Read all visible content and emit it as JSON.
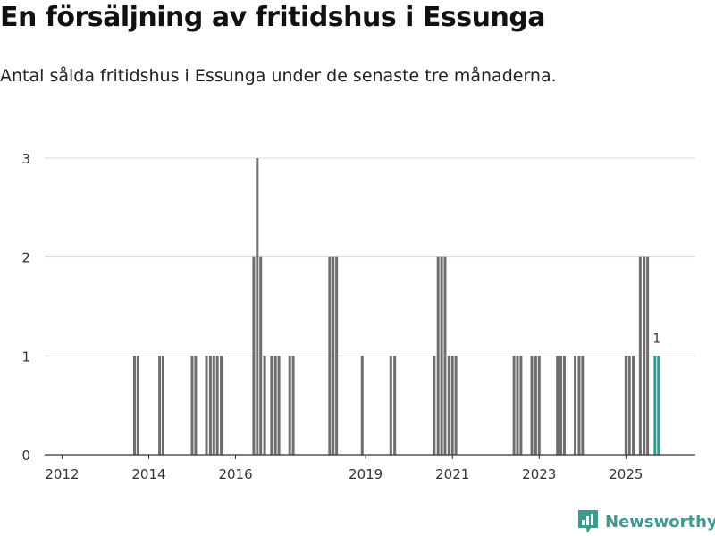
{
  "header": {
    "title": "En försäljning av fritidshus i Essunga",
    "subtitle": "Antal sålda fritidshus i Essunga under de senaste tre månaderna."
  },
  "brand": {
    "name": "Newsworthy"
  },
  "colors": {
    "bar": "#6e6e6e",
    "highlight": "#2a9d8f",
    "grid": "#d9d9d9",
    "axis": "#333333",
    "brand": "#3d9a8f"
  },
  "chart_data": {
    "type": "bar",
    "title": "En försäljning av fritidshus i Essunga",
    "xlabel": "",
    "ylabel": "",
    "ylim": [
      0,
      3
    ],
    "yticks": [
      0,
      1,
      2,
      3
    ],
    "xlim": [
      2011.6,
      2026.6
    ],
    "xticks": [
      "2012",
      "2014",
      "2016",
      "2019",
      "2021",
      "2023",
      "2025"
    ],
    "xtick_positions": [
      2012.0,
      2014.0,
      2016.0,
      2019.0,
      2021.0,
      2023.0,
      2025.0
    ],
    "bars": [
      {
        "x": 2013.67,
        "value": 1
      },
      {
        "x": 2013.75,
        "value": 1
      },
      {
        "x": 2014.25,
        "value": 1
      },
      {
        "x": 2014.33,
        "value": 1
      },
      {
        "x": 2015.0,
        "value": 1
      },
      {
        "x": 2015.08,
        "value": 1
      },
      {
        "x": 2015.33,
        "value": 1
      },
      {
        "x": 2015.42,
        "value": 1
      },
      {
        "x": 2015.5,
        "value": 1
      },
      {
        "x": 2015.58,
        "value": 1
      },
      {
        "x": 2015.67,
        "value": 1
      },
      {
        "x": 2016.42,
        "value": 2
      },
      {
        "x": 2016.5,
        "value": 3
      },
      {
        "x": 2016.58,
        "value": 2
      },
      {
        "x": 2016.67,
        "value": 1
      },
      {
        "x": 2016.83,
        "value": 1
      },
      {
        "x": 2016.92,
        "value": 1
      },
      {
        "x": 2017.0,
        "value": 1
      },
      {
        "x": 2017.25,
        "value": 1
      },
      {
        "x": 2017.33,
        "value": 1
      },
      {
        "x": 2018.17,
        "value": 2
      },
      {
        "x": 2018.25,
        "value": 2
      },
      {
        "x": 2018.33,
        "value": 2
      },
      {
        "x": 2018.92,
        "value": 1
      },
      {
        "x": 2019.58,
        "value": 1
      },
      {
        "x": 2019.67,
        "value": 1
      },
      {
        "x": 2020.58,
        "value": 1
      },
      {
        "x": 2020.67,
        "value": 2
      },
      {
        "x": 2020.75,
        "value": 2
      },
      {
        "x": 2020.83,
        "value": 2
      },
      {
        "x": 2020.92,
        "value": 1
      },
      {
        "x": 2021.0,
        "value": 1
      },
      {
        "x": 2021.08,
        "value": 1
      },
      {
        "x": 2022.42,
        "value": 1
      },
      {
        "x": 2022.5,
        "value": 1
      },
      {
        "x": 2022.58,
        "value": 1
      },
      {
        "x": 2022.83,
        "value": 1
      },
      {
        "x": 2022.92,
        "value": 1
      },
      {
        "x": 2023.0,
        "value": 1
      },
      {
        "x": 2023.42,
        "value": 1
      },
      {
        "x": 2023.5,
        "value": 1
      },
      {
        "x": 2023.58,
        "value": 1
      },
      {
        "x": 2023.83,
        "value": 1
      },
      {
        "x": 2023.92,
        "value": 1
      },
      {
        "x": 2024.0,
        "value": 1
      },
      {
        "x": 2025.0,
        "value": 1
      },
      {
        "x": 2025.08,
        "value": 1
      },
      {
        "x": 2025.17,
        "value": 1
      },
      {
        "x": 2025.33,
        "value": 2
      },
      {
        "x": 2025.42,
        "value": 2
      },
      {
        "x": 2025.5,
        "value": 2
      },
      {
        "x": 2025.67,
        "value": 1,
        "highlight": true,
        "label": "1"
      },
      {
        "x": 2025.75,
        "value": 1,
        "highlight": true
      }
    ],
    "legend": "none",
    "grid": true
  }
}
